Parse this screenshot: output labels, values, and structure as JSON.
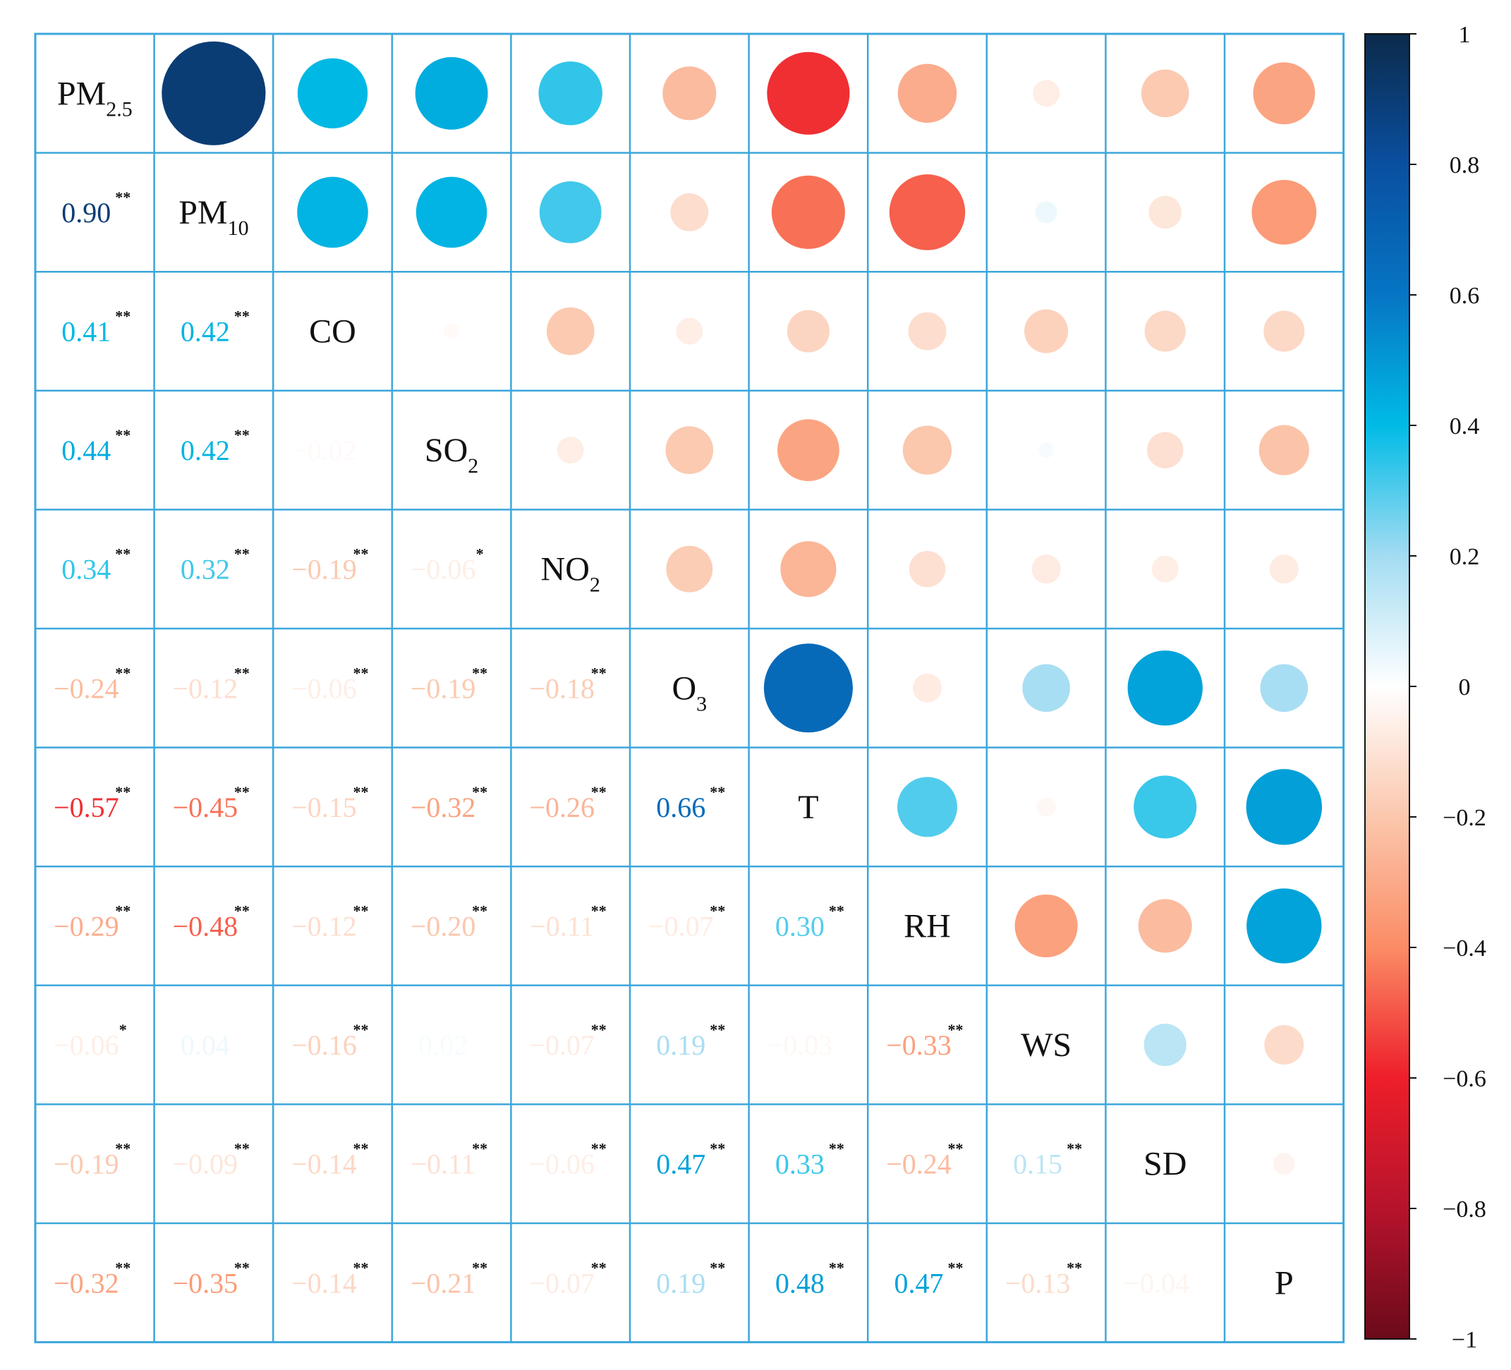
{
  "chart_data": {
    "type": "heatmap",
    "variables": [
      {
        "main": "PM",
        "sub": "2.5"
      },
      {
        "main": "PM",
        "sub": "10"
      },
      {
        "main": "CO",
        "sub": ""
      },
      {
        "main": "SO",
        "sub": "2"
      },
      {
        "main": "NO",
        "sub": "2"
      },
      {
        "main": "O",
        "sub": "3"
      },
      {
        "main": "T",
        "sub": ""
      },
      {
        "main": "RH",
        "sub": ""
      },
      {
        "main": "WS",
        "sub": ""
      },
      {
        "main": "SD",
        "sub": ""
      },
      {
        "main": "P",
        "sub": ""
      }
    ],
    "matrix": [
      [
        1,
        0.9,
        0.41,
        0.44,
        0.34,
        -0.24,
        -0.57,
        -0.29,
        -0.06,
        -0.19,
        -0.32
      ],
      [
        0.9,
        1,
        0.42,
        0.42,
        0.32,
        -0.12,
        -0.45,
        -0.48,
        0.04,
        -0.09,
        -0.35
      ],
      [
        0.41,
        0.42,
        1,
        -0.02,
        -0.19,
        -0.06,
        -0.15,
        -0.12,
        -0.16,
        -0.14,
        -0.14
      ],
      [
        0.44,
        0.42,
        -0.02,
        1,
        -0.06,
        -0.19,
        -0.32,
        -0.2,
        0.02,
        -0.11,
        -0.21
      ],
      [
        0.34,
        0.32,
        -0.19,
        -0.06,
        1,
        -0.18,
        -0.26,
        -0.11,
        -0.07,
        -0.06,
        -0.07
      ],
      [
        -0.24,
        -0.12,
        -0.06,
        -0.19,
        -0.18,
        1,
        0.66,
        -0.07,
        0.19,
        0.47,
        0.19
      ],
      [
        -0.57,
        -0.45,
        -0.15,
        -0.32,
        -0.26,
        0.66,
        1,
        0.3,
        -0.03,
        0.33,
        0.48
      ],
      [
        -0.29,
        -0.48,
        -0.12,
        -0.2,
        -0.11,
        -0.07,
        0.3,
        1,
        -0.33,
        -0.24,
        0.47
      ],
      [
        -0.06,
        0.04,
        -0.16,
        0.02,
        -0.07,
        0.19,
        -0.03,
        -0.33,
        1,
        0.15,
        -0.13
      ],
      [
        -0.19,
        -0.09,
        -0.14,
        -0.11,
        -0.06,
        0.47,
        0.33,
        -0.24,
        0.15,
        1,
        -0.04
      ],
      [
        -0.32,
        -0.35,
        -0.14,
        -0.21,
        -0.07,
        0.19,
        0.48,
        0.47,
        -0.13,
        -0.04,
        1
      ]
    ],
    "lower_text": [
      [
        "0.90",
        "**"
      ],
      [
        "0.41",
        "**"
      ],
      [
        "0.42",
        "**"
      ],
      [
        "0.44",
        "**"
      ],
      [
        "0.42",
        "**"
      ],
      [
        "−0.02",
        ""
      ],
      [
        "0.34",
        "**"
      ],
      [
        "0.32",
        "**"
      ],
      [
        "−0.19",
        "**"
      ],
      [
        "−0.06",
        "*"
      ],
      [
        "−0.24",
        "**"
      ],
      [
        "−0.12",
        "**"
      ],
      [
        "−0.06",
        "**"
      ],
      [
        "−0.19",
        "**"
      ],
      [
        "−0.18",
        "**"
      ],
      [
        "−0.57",
        "**"
      ],
      [
        "−0.45",
        "**"
      ],
      [
        "−0.15",
        "**"
      ],
      [
        "−0.32",
        "**"
      ],
      [
        "−0.26",
        "**"
      ],
      [
        "0.66",
        "**"
      ],
      [
        "−0.29",
        "**"
      ],
      [
        "−0.48",
        "**"
      ],
      [
        "−0.12",
        "**"
      ],
      [
        "−0.20",
        "**"
      ],
      [
        "−0.11",
        "**"
      ],
      [
        "−0.07",
        "**"
      ],
      [
        "0.30",
        "**"
      ],
      [
        "−0.06",
        "*"
      ],
      [
        "0.04",
        ""
      ],
      [
        "−0.16",
        "**"
      ],
      [
        "0.02",
        ""
      ],
      [
        "−0.07",
        "**"
      ],
      [
        "0.19",
        "**"
      ],
      [
        "−0.03",
        ""
      ],
      [
        "−0.33",
        "**"
      ],
      [
        "−0.19",
        "**"
      ],
      [
        "−0.09",
        "**"
      ],
      [
        "−0.14",
        "**"
      ],
      [
        "−0.11",
        "**"
      ],
      [
        "−0.06",
        "**"
      ],
      [
        "0.47",
        "**"
      ],
      [
        "0.33",
        "**"
      ],
      [
        "−0.24",
        "**"
      ],
      [
        "0.15",
        "**"
      ],
      [
        "−0.32",
        "**"
      ],
      [
        "−0.35",
        "**"
      ],
      [
        "−0.14",
        "**"
      ],
      [
        "−0.21",
        "**"
      ],
      [
        "−0.07",
        "**"
      ],
      [
        "0.19",
        "**"
      ],
      [
        "0.48",
        "**"
      ],
      [
        "0.47",
        "**"
      ],
      [
        "−0.13",
        "**"
      ],
      [
        "−0.04",
        ""
      ]
    ],
    "colorbar": {
      "range": [
        -1,
        1
      ],
      "ticks": [
        {
          "v": 1,
          "label": "1"
        },
        {
          "v": 0.8,
          "label": "0.8"
        },
        {
          "v": 0.6,
          "label": "0.6"
        },
        {
          "v": 0.4,
          "label": "0.4"
        },
        {
          "v": 0.2,
          "label": "0.2"
        },
        {
          "v": 0,
          "label": "0"
        },
        {
          "v": -0.2,
          "label": "−0.2"
        },
        {
          "v": -0.4,
          "label": "−0.4"
        },
        {
          "v": -0.6,
          "label": "−0.6"
        },
        {
          "v": -0.8,
          "label": "−0.8"
        },
        {
          "v": -1,
          "label": "−1"
        }
      ],
      "stops": [
        {
          "v": 1,
          "color": "#0b2a4a"
        },
        {
          "v": 0.8,
          "color": "#0a4fa0"
        },
        {
          "v": 0.6,
          "color": "#0675c4"
        },
        {
          "v": 0.4,
          "color": "#00bbe6"
        },
        {
          "v": 0.2,
          "color": "#a3dcf2"
        },
        {
          "v": 0,
          "color": "#ffffff"
        },
        {
          "v": -0.2,
          "color": "#fbc7ad"
        },
        {
          "v": -0.4,
          "color": "#fb8c65"
        },
        {
          "v": -0.6,
          "color": "#ee1e2a"
        },
        {
          "v": -0.8,
          "color": "#b6132c"
        },
        {
          "v": -1,
          "color": "#6a0b1a"
        }
      ]
    },
    "grid_color": "#3ca7dc",
    "title": "",
    "xlabel": "",
    "ylabel": ""
  }
}
